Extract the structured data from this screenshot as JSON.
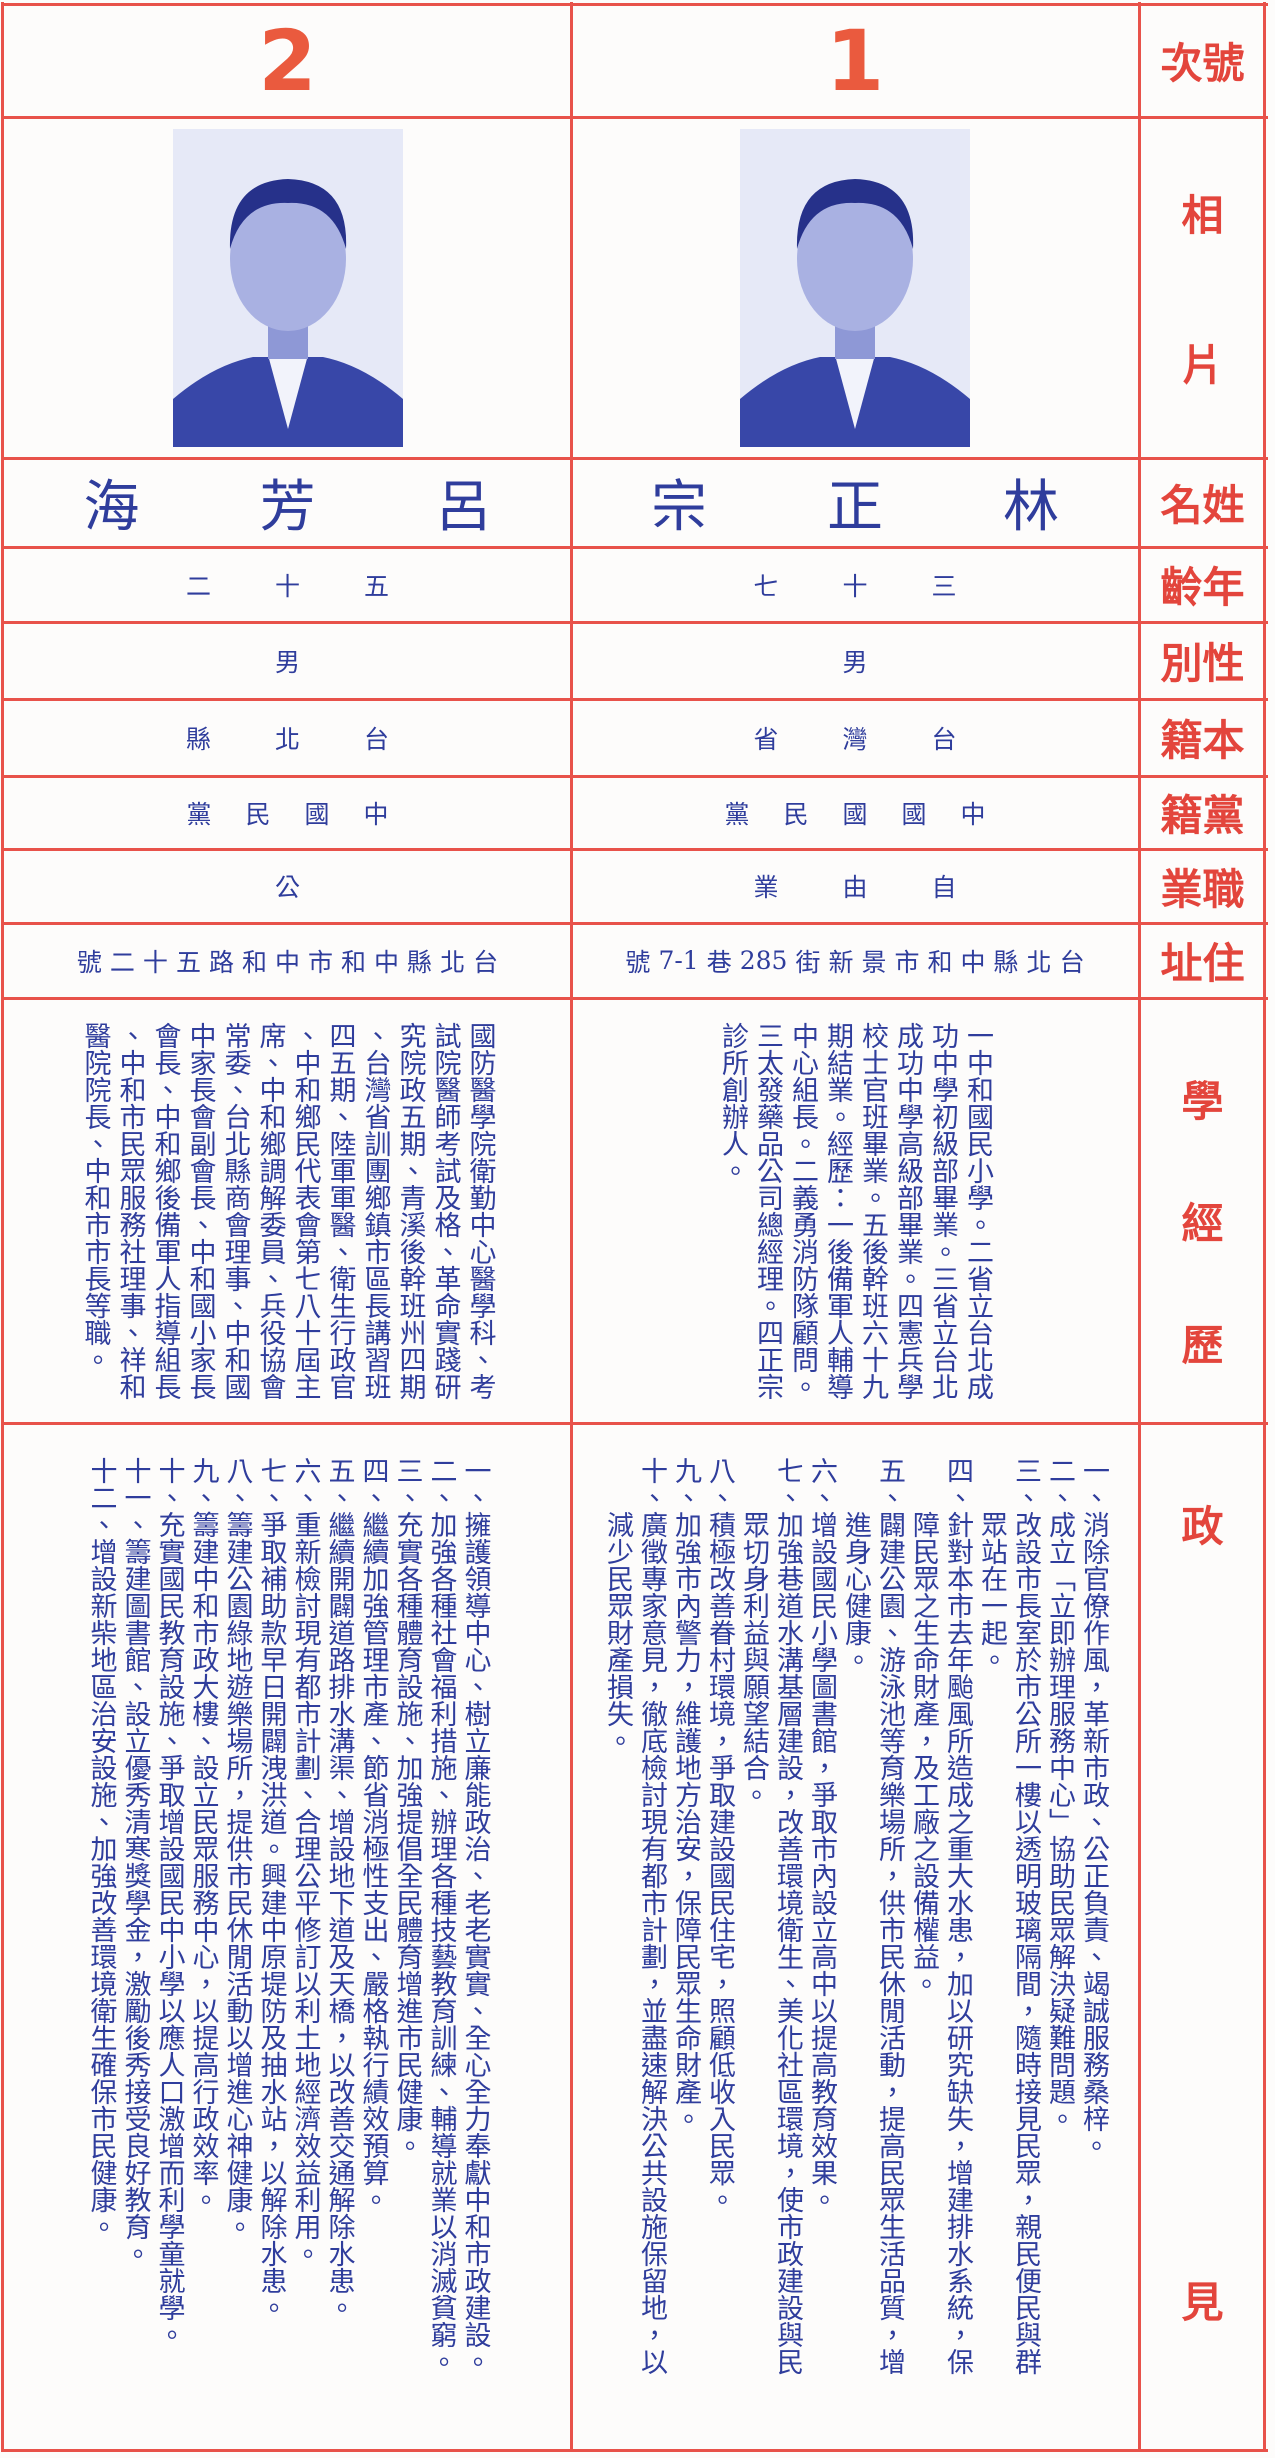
{
  "labels": {
    "number": "號次",
    "photo": "相片",
    "name": "姓名",
    "age": "年齡",
    "sex": "性別",
    "native": "本籍",
    "party": "黨籍",
    "job": "職業",
    "address": "住址",
    "background": "學經歷",
    "platform": "政見"
  },
  "candidates": [
    {
      "number": "1",
      "name": "林正宗",
      "age": "三十七",
      "sex": "男",
      "native": "台灣省",
      "party": "中國國民黨",
      "job": "自由業",
      "address": "台北縣中和市景新街285巷7-1號",
      "background": [
        "一中和國民小學。二省立台北成",
        "功中學初級部畢業。三省立台北",
        "成功中學高級部畢業。四憲兵學",
        "校士官班畢業。五後幹班六十九",
        "期結業。經歷：一後備軍人輔導",
        "中心組長。二義勇消防隊顧問。",
        "三太發藥品公司總經理。四正宗",
        "診所創辦人。"
      ],
      "platform": [
        "一、消除官僚作風，革新市政、公正負責、竭誠服務桑梓。",
        "二、成立「立即辦理服務中心」協助民眾解決疑難問題。",
        "三、改設市長室於市公所一樓以透明玻璃隔間，隨時接見民眾，親民便民與群眾站在一起。",
        "四、針對本市去年颱風所造成之重大水患，加以研究缺失，增建排水系統，保障民眾之生命財產，及工廠之設備權益。",
        "五、闢建公園、游泳池等育樂場所，供市民休閒活動，提高民眾生活品質，增進身心健康。",
        "六、增設國民小學圖書館，爭取市內設立高中以提高教育效果。",
        "七、加強巷道水溝基層建設，改善環境衛生、美化社區環境，使市政建設與民眾切身利益與願望結合。",
        "八、積極改善眷村環境，爭取建設國民住宅，照顧低收入民眾。",
        "九、加強市內警力，維護地方治安，保障民眾生命財產。",
        "十、廣徵專家意見，徹底檢討現有都市計劃，並盡速解決公共設施保留地，以減少民眾財產損失。"
      ]
    },
    {
      "number": "2",
      "name": "呂芳海",
      "age": "五十二",
      "sex": "男",
      "native": "台北縣",
      "party": "中國民黨",
      "job": "公",
      "address": "台北縣中和市中和路五十二號",
      "background": [
        "國防醫學院衛勤中心醫學科、考",
        "試院醫師考試及格、革命實踐研",
        "究院政五期、青溪後幹班州四期",
        "、台灣省訓團鄉鎮市區長講習班",
        "四五期、陸軍軍醫、衛生行政官",
        "、中和鄉民代表會第七八十屆主",
        "席、中和鄉調解委員、兵役協會",
        "常委、台北縣商會理事、中和國",
        "中家長會副會長、中和國小家長",
        "會長、中和鄉後備軍人指導組長",
        "、中和市民眾服務社理事、祥和",
        "醫院院長、中和市市長等職。"
      ],
      "platform": [
        "一、擁護領導中心、樹立廉能政治、老老實實、全心全力奉獻中和市政建設。",
        "二、加強各種社會福利措施、辦理各種技藝教育訓練、輔導就業以消滅貧窮。",
        "三、充實各種體育設施、加強提倡全民體育增進市民健康。",
        "四、繼續加強管理市產、節省消極性支出、嚴格執行績效預算。",
        "五、繼續開闢道路排水溝渠、增設地下道及天橋，以改善交通解除水患。",
        "六、重新檢討現有都市計劃、合理公平修訂以利土地經濟效益利用。",
        "七、爭取補助款早日開闢洩洪道。興建中原堤防及抽水站，以解除水患。",
        "八、籌建公園綠地遊樂場所，提供市民休閒活動以增進心神健康。",
        "九、籌建中和市政大樓、設立民眾服務中心，以提高行政效率。",
        "十、充實國民教育設施、爭取增設國民中小學以應人口激增而利學童就學。",
        "十一、籌建圖書館、設立優秀清寒獎學金，激勵後秀接受良好教育。",
        "十二、增設新柴地區治安設施、加強改善環境衛生確保市民健康。"
      ]
    }
  ]
}
